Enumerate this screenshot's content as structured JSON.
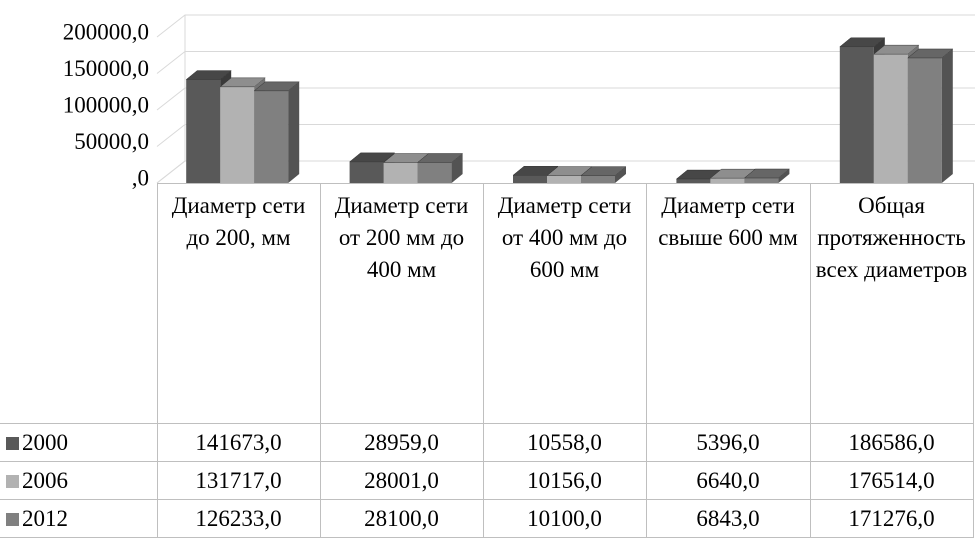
{
  "chart_data": {
    "type": "bar3d",
    "categories": [
      "Диаметр сети до 200, мм",
      "Диаметр сети от 200 мм до 400 мм",
      "Диаметр сети от 400 мм до 600 мм",
      "Диаметр сети свыше 600 мм",
      "Общая протяженность всех диаметров"
    ],
    "series": [
      {
        "name": "2000",
        "color": "#595959",
        "values": [
          141673,
          28959,
          10558,
          5396,
          186586
        ],
        "value_labels": [
          "141673,0",
          "28959,0",
          "10558,0",
          "5396,0",
          "186586,0"
        ]
      },
      {
        "name": "2006",
        "color": "#b2b2b2",
        "values": [
          131717,
          28001,
          10156,
          6640,
          176514
        ],
        "value_labels": [
          "131717,0",
          "28001,0",
          "10156,0",
          "6640,0",
          "176514,0"
        ]
      },
      {
        "name": "2012",
        "color": "#808080",
        "values": [
          126233,
          28100,
          10100,
          6843,
          171276
        ],
        "value_labels": [
          "126233,0",
          "28100,0",
          "10100,0",
          "6843,0",
          "171276,0"
        ]
      }
    ],
    "ylim": [
      0,
      200000
    ],
    "yticks": [
      {
        "value": 0,
        "label": ",0"
      },
      {
        "value": 50000,
        "label": "50000,0"
      },
      {
        "value": 100000,
        "label": "100000,0"
      },
      {
        "value": 150000,
        "label": "150000,0"
      },
      {
        "value": 200000,
        "label": "200000,0"
      }
    ],
    "grid": true
  }
}
